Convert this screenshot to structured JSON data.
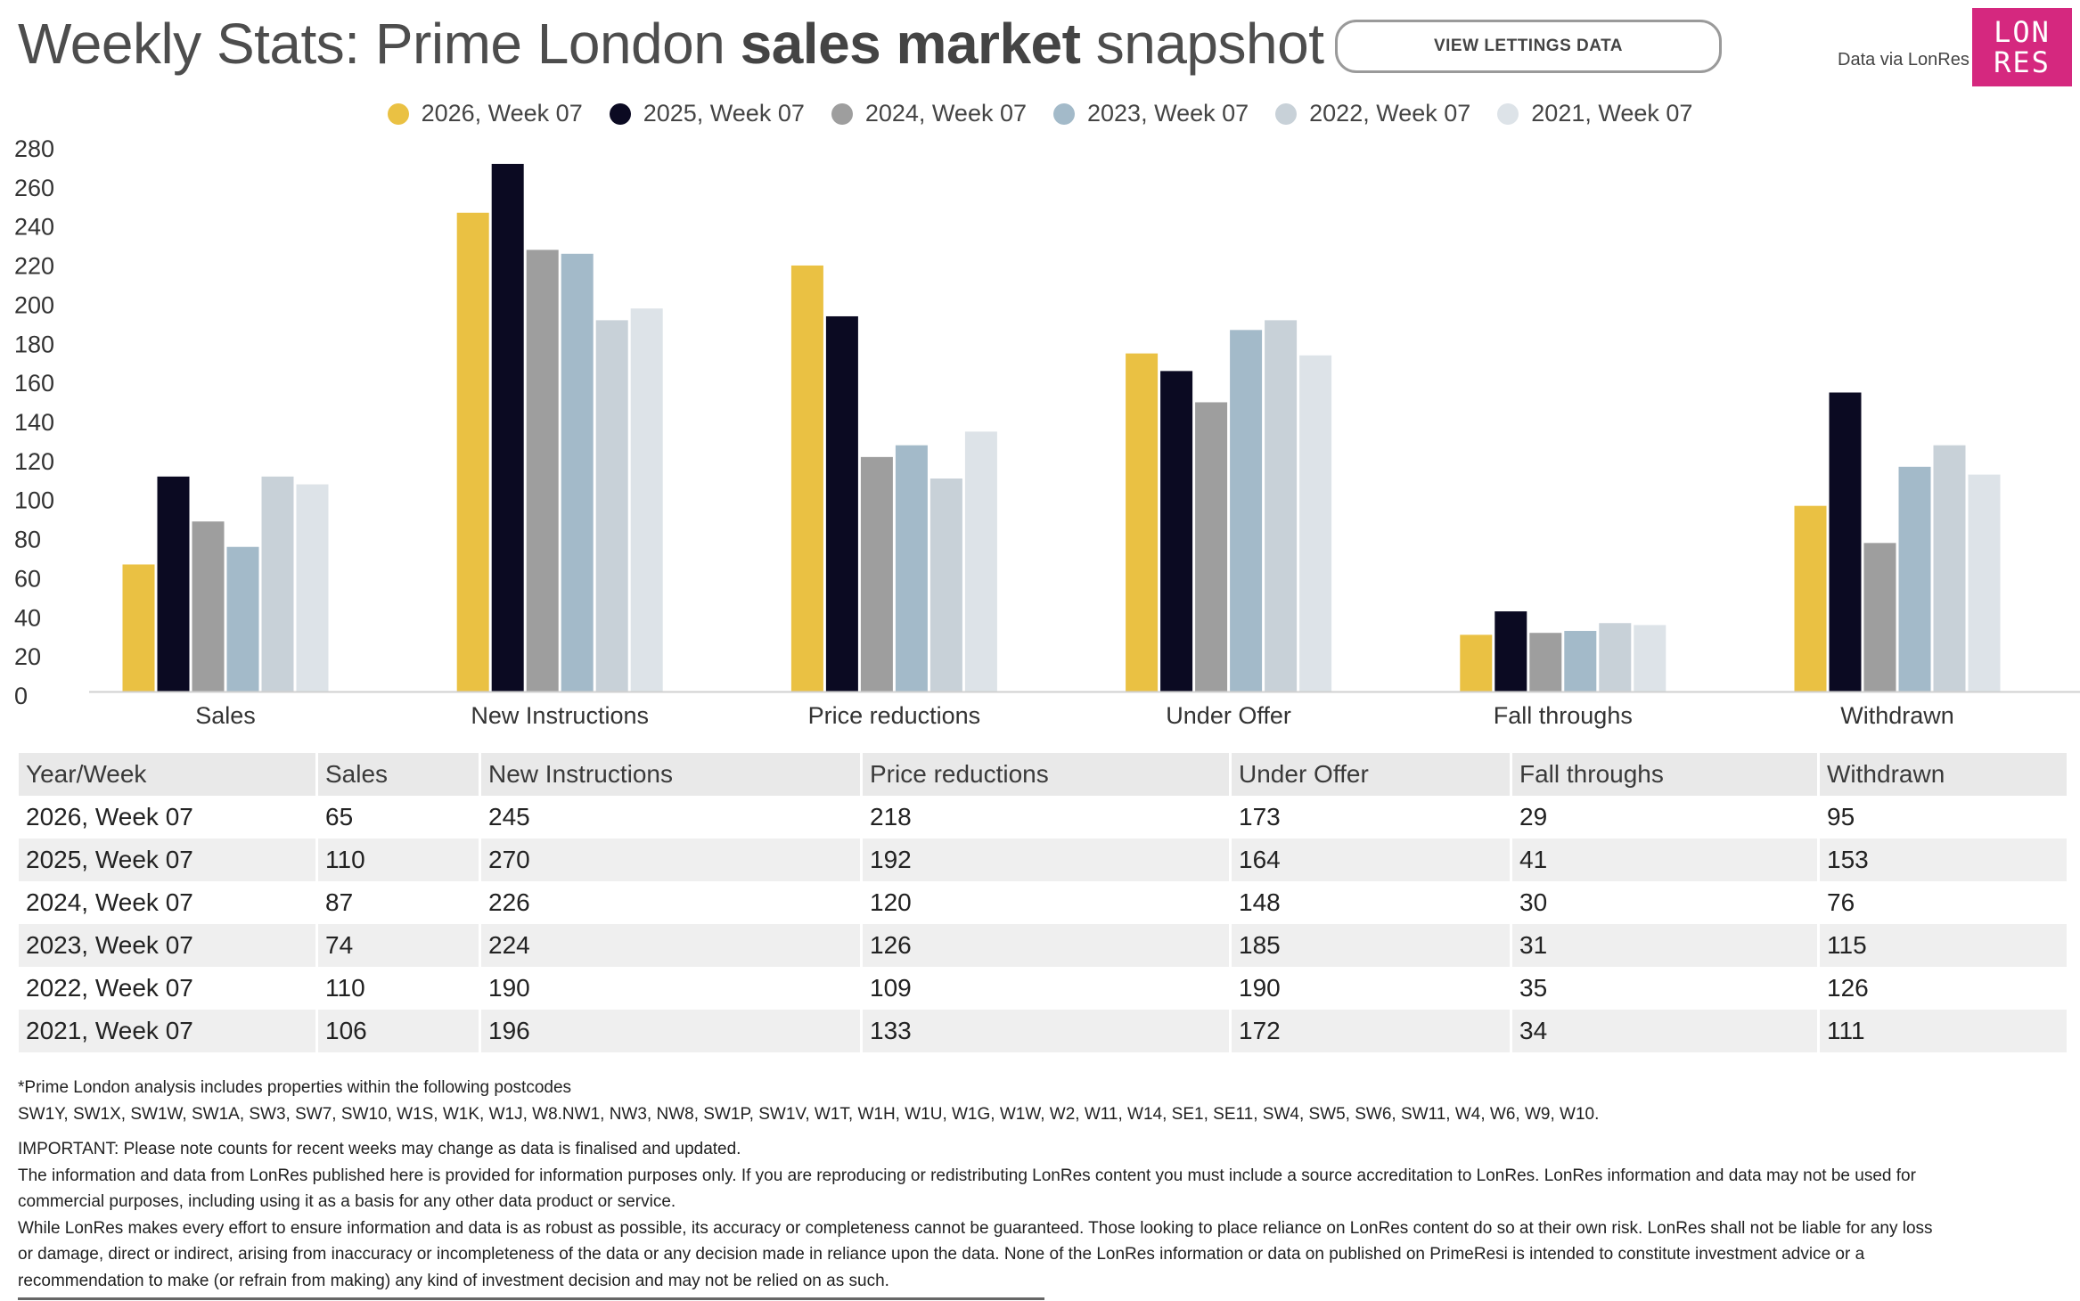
{
  "header": {
    "title_prefix": "Weekly Stats: Prime London ",
    "title_bold": "sales market",
    "title_suffix": " snapshot",
    "lettings_button_label": "VIEW LETTINGS DATA",
    "data_source_label": "Data via LonRes",
    "logo_line1": "LON",
    "logo_line2": "RES"
  },
  "colors": {
    "2026": "#eac143",
    "2025": "#0b0a22",
    "2024": "#9e9e9e",
    "2023": "#a3bac9",
    "2022": "#c8d1d8",
    "2021": "#dde3e8",
    "brand_pink": "#d5287f"
  },
  "chart_data": {
    "type": "bar",
    "title": "Weekly Stats: Prime London sales market snapshot",
    "xlabel": "",
    "ylabel": "",
    "ylim": [
      0,
      280
    ],
    "yticks": [
      0,
      20,
      40,
      60,
      80,
      100,
      120,
      140,
      160,
      180,
      200,
      220,
      240,
      260,
      280
    ],
    "grid": false,
    "legend_position": "top-center",
    "categories": [
      "Sales",
      "New Instructions",
      "Price reductions",
      "Under Offer",
      "Fall throughs",
      "Withdrawn"
    ],
    "series": [
      {
        "name": "2026, Week 07",
        "key": "2026",
        "values": [
          65,
          245,
          218,
          173,
          29,
          95
        ]
      },
      {
        "name": "2025, Week 07",
        "key": "2025",
        "values": [
          110,
          270,
          192,
          164,
          41,
          153
        ]
      },
      {
        "name": "2024, Week 07",
        "key": "2024",
        "values": [
          87,
          226,
          120,
          148,
          30,
          76
        ]
      },
      {
        "name": "2023, Week 07",
        "key": "2023",
        "values": [
          74,
          224,
          126,
          185,
          31,
          115
        ]
      },
      {
        "name": "2022, Week 07",
        "key": "2022",
        "values": [
          110,
          190,
          109,
          190,
          35,
          126
        ]
      },
      {
        "name": "2021, Week 07",
        "key": "2021",
        "values": [
          106,
          196,
          133,
          172,
          34,
          111
        ]
      }
    ]
  },
  "table": {
    "headers": [
      "Year/Week",
      "Sales",
      "New Instructions",
      "Price reductions",
      "Under Offer",
      "Fall throughs",
      "Withdrawn"
    ],
    "rows": [
      [
        "2026, Week 07",
        "65",
        "245",
        "218",
        "173",
        "29",
        "95"
      ],
      [
        "2025, Week 07",
        "110",
        "270",
        "192",
        "164",
        "41",
        "153"
      ],
      [
        "2024, Week 07",
        "87",
        "226",
        "120",
        "148",
        "30",
        "76"
      ],
      [
        "2023, Week 07",
        "74",
        "224",
        "126",
        "185",
        "31",
        "115"
      ],
      [
        "2022, Week 07",
        "110",
        "190",
        "109",
        "190",
        "35",
        "126"
      ],
      [
        "2021, Week 07",
        "106",
        "196",
        "133",
        "172",
        "34",
        "111"
      ]
    ]
  },
  "notes": {
    "postcode_intro": "*Prime London analysis includes properties within the following postcodes",
    "postcodes": "SW1Y, SW1X, SW1W, SW1A, SW3, SW7, SW10, W1S, W1K, W1J, W8.NW1, NW3, NW8, SW1P, SW1V, W1T, W1H, W1U, W1G, W1W, W2, W11, W14, SE1, SE11, SW4, SW5, SW6, SW11, W4, W6, W9, W10.",
    "important": "IMPORTANT: Please note counts for recent weeks may change as data is finalised and updated.",
    "info_line1": "The information and data from LonRes published here is provided for information purposes only. If you are reproducing or redistributing LonRes content you must include a source accreditation to LonRes. LonRes information and data may not be used for",
    "info_line2": "commercial purposes, including using it as a basis for any other data product or service.",
    "disclaimer_line1": "While LonRes makes every effort to ensure information and data is as robust as possible, its accuracy or completeness cannot be guaranteed. Those looking to place reliance on LonRes content do so at their own risk. LonRes shall not be liable for any loss",
    "disclaimer_line2": "or damage, direct or indirect, arising from inaccuracy or incompleteness of the data or any decision made in reliance upon the data. None of the LonRes information or data on published on PrimeResi is intended to constitute investment advice or a",
    "disclaimer_line3": "recommendation to make (or refrain from making) any kind of investment decision and may not be relied on as such."
  }
}
